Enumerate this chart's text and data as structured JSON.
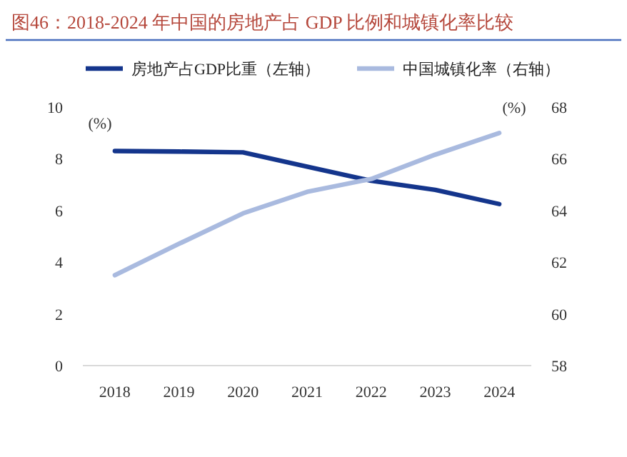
{
  "chart_data": {
    "type": "line",
    "title": "图46：2018-2024 年中国的房地产占 GDP 比例和城镇化率比较",
    "ylabel": "(%)",
    "y2label": "(%)",
    "categories": [
      "2018",
      "2019",
      "2020",
      "2021",
      "2022",
      "2023",
      "2024"
    ],
    "series": [
      {
        "name": "房地产占GDP比重（左轴）",
        "color": "#14358c",
        "values": [
          8.3,
          8.28,
          8.25,
          7.7,
          7.15,
          6.8,
          6.25
        ]
      },
      {
        "name": "中国城镇化率（右轴）",
        "color": "#a9badf",
        "axis": "y2",
        "values": [
          61.5,
          62.71,
          63.89,
          64.72,
          65.22,
          66.16,
          67.0
        ]
      }
    ],
    "ylim": [
      0,
      10
    ],
    "yticks": [
      0,
      2,
      4,
      6,
      8,
      10
    ],
    "y2lim": [
      58,
      68
    ],
    "y2ticks": [
      58,
      60,
      62,
      64,
      66,
      68
    ],
    "legend": "top"
  }
}
